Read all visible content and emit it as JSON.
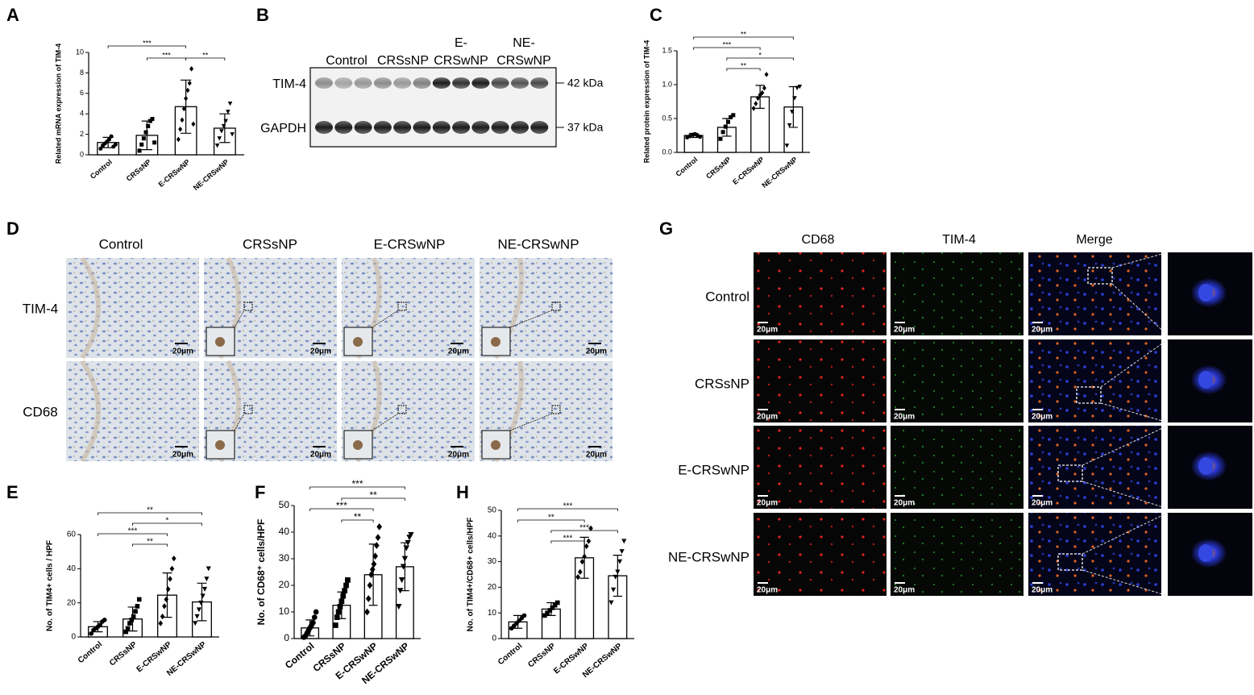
{
  "chart_data": [
    {
      "panel": "A",
      "type": "bar",
      "ylabel": "Related mRNA expression of TIM-4",
      "categories": [
        "Control",
        "CRSsNP",
        "E-CRSwNP",
        "NE-CRSwNP"
      ],
      "values": [
        1.2,
        1.9,
        4.7,
        2.6
      ],
      "errors": [
        0.5,
        1.4,
        2.6,
        1.4
      ],
      "points": [
        [
          0.6,
          0.9,
          1.1,
          1.3,
          1.5,
          1.8,
          0.8,
          1.0
        ],
        [
          0.4,
          1.0,
          1.6,
          2.2,
          2.8,
          3.3,
          3.5,
          1.2
        ],
        [
          1.5,
          2.5,
          3.4,
          4.5,
          5.5,
          6.3,
          7.0,
          8.4,
          3.0
        ],
        [
          0.9,
          1.6,
          2.3,
          2.8,
          3.3,
          4.2,
          5.0,
          2.0
        ]
      ],
      "markers": [
        "circle",
        "square",
        "diamond",
        "triangle-down"
      ],
      "ylim": [
        0,
        10
      ],
      "yticks": [
        0,
        2,
        4,
        6,
        8,
        10
      ],
      "comparisons": [
        {
          "pair": [
            "Control",
            "E-CRSwNP"
          ],
          "label": "***"
        },
        {
          "pair": [
            "CRSsNP",
            "E-CRSwNP"
          ],
          "label": "***"
        },
        {
          "pair": [
            "E-CRSwNP",
            "NE-CRSwNP"
          ],
          "label": "**"
        }
      ]
    },
    {
      "panel": "C",
      "type": "bar",
      "ylabel": "Related protein expression of TIM-4",
      "categories": [
        "Control",
        "CRSsNP",
        "E-CRSwNP",
        "NE-CRSwNP"
      ],
      "values": [
        0.25,
        0.37,
        0.82,
        0.67
      ],
      "errors": [
        0.03,
        0.13,
        0.17,
        0.3
      ],
      "points": [
        [
          0.22,
          0.24,
          0.26,
          0.27,
          0.25,
          0.23
        ],
        [
          0.2,
          0.3,
          0.38,
          0.45,
          0.52,
          0.55
        ],
        [
          0.65,
          0.72,
          0.8,
          0.85,
          0.88,
          0.95,
          1.15
        ],
        [
          0.1,
          0.4,
          0.6,
          0.8,
          0.95,
          0.97
        ]
      ],
      "markers": [
        "circle",
        "square",
        "diamond",
        "triangle-down"
      ],
      "ylim": [
        0,
        1.5
      ],
      "yticks": [
        {
          "value": 0,
          "label": "0.0"
        },
        0.5,
        {
          "value": 1,
          "label": "1.0"
        },
        1.5
      ],
      "comparisons": [
        {
          "pair": [
            "Control",
            "NE-CRSwNP"
          ],
          "label": "**"
        },
        {
          "pair": [
            "Control",
            "E-CRSwNP"
          ],
          "label": "***"
        },
        {
          "pair": [
            "CRSsNP",
            "NE-CRSwNP"
          ],
          "label": "*"
        },
        {
          "pair": [
            "CRSsNP",
            "E-CRSwNP"
          ],
          "label": "**"
        }
      ]
    },
    {
      "panel": "E",
      "type": "bar",
      "ylabel": "No. of  TIM4+ cells / HPF",
      "categories": [
        "Control",
        "CRSsNP",
        "E-CRSwNP",
        "NE-CRSwNP"
      ],
      "values": [
        6,
        10.5,
        24.5,
        20.5
      ],
      "errors": [
        3,
        7,
        13,
        11
      ],
      "points": [
        [
          2,
          4,
          5,
          6,
          7,
          9,
          10
        ],
        [
          3,
          5,
          8,
          10,
          12,
          15,
          18,
          22
        ],
        [
          8,
          12,
          18,
          22,
          28,
          34,
          40,
          46
        ],
        [
          8,
          12,
          16,
          20,
          24,
          28,
          34,
          40
        ]
      ],
      "markers": [
        "circle",
        "square",
        "diamond",
        "triangle-down"
      ],
      "ylim": [
        0,
        60
      ],
      "yticks": [
        0,
        20,
        40,
        60
      ],
      "comparisons": [
        {
          "pair": [
            "Control",
            "NE-CRSwNP"
          ],
          "label": "**"
        },
        {
          "pair": [
            "CRSsNP",
            "NE-CRSwNP"
          ],
          "label": "*"
        },
        {
          "pair": [
            "Control",
            "E-CRSwNP"
          ],
          "label": "***"
        },
        {
          "pair": [
            "CRSsNP",
            "E-CRSwNP"
          ],
          "label": "**"
        }
      ]
    },
    {
      "panel": "F",
      "type": "bar",
      "ylabel": "No. of CD68⁺ cells/HPF",
      "categories": [
        "Control",
        "CRSsNP",
        "E-CRSwNP",
        "NE-CRSwNP"
      ],
      "values": [
        4,
        12.5,
        24,
        27
      ],
      "errors": [
        3,
        5,
        11.5,
        9
      ],
      "points": [
        [
          0.5,
          1,
          2,
          3,
          4,
          5,
          6,
          8,
          10
        ],
        [
          5,
          8,
          10,
          12,
          14,
          16,
          18,
          20,
          22
        ],
        [
          10,
          15,
          20,
          24,
          26,
          28,
          31,
          35,
          38,
          42
        ],
        [
          12,
          18,
          22,
          27,
          30,
          34,
          36,
          38,
          39
        ]
      ],
      "markers": [
        "circle",
        "square",
        "diamond",
        "triangle-down"
      ],
      "ylim": [
        0,
        50
      ],
      "yticks": [
        0,
        10,
        20,
        30,
        40,
        50
      ],
      "comparisons": [
        {
          "pair": [
            "Control",
            "NE-CRSwNP"
          ],
          "label": "***"
        },
        {
          "pair": [
            "CRSsNP",
            "NE-CRSwNP"
          ],
          "label": "**"
        },
        {
          "pair": [
            "Control",
            "E-CRSwNP"
          ],
          "label": "***"
        },
        {
          "pair": [
            "CRSsNP",
            "E-CRSwNP"
          ],
          "label": "**"
        }
      ]
    },
    {
      "panel": "H",
      "type": "bar",
      "ylabel": "No. of  TIM4+/CD68+ cells/HPF",
      "categories": [
        "Control",
        "CRSsNP",
        "E-CRSwNP",
        "NE-CRSwNP"
      ],
      "values": [
        6.5,
        11.5,
        31.5,
        24.5
      ],
      "errors": [
        2.5,
        2.5,
        8,
        8
      ],
      "points": [
        [
          4,
          5,
          6,
          7,
          8,
          9
        ],
        [
          9,
          10,
          11,
          12,
          13,
          14
        ],
        [
          24,
          26,
          30,
          32,
          36,
          38,
          43
        ],
        [
          14,
          19,
          24,
          26,
          30,
          34,
          38
        ]
      ],
      "markers": [
        "circle",
        "square",
        "diamond",
        "triangle-down"
      ],
      "ylim": [
        0,
        50
      ],
      "yticks": [
        0,
        10,
        20,
        30,
        40,
        50
      ],
      "comparisons": [
        {
          "pair": [
            "Control",
            "NE-CRSwNP"
          ],
          "label": "***"
        },
        {
          "pair": [
            "Control",
            "E-CRSwNP"
          ],
          "label": "**"
        },
        {
          "pair": [
            "CRSsNP",
            "NE-CRSwNP"
          ],
          "label": "***"
        },
        {
          "pair": [
            "CRSsNP",
            "E-CRSwNP"
          ],
          "label": "***"
        }
      ]
    }
  ],
  "blot": {
    "panel": "B",
    "lanes": [
      {
        "lines": [
          "Control"
        ]
      },
      {
        "lines": [
          "CRSsNP"
        ]
      },
      {
        "lines": [
          "E-",
          "CRSwNP"
        ]
      },
      {
        "lines": [
          "NE-",
          "CRSwNP"
        ]
      }
    ],
    "rows": [
      {
        "label": "TIM-4",
        "size": "42 kDa"
      },
      {
        "label": "GAPDH",
        "size": "37 kDa"
      }
    ]
  },
  "ihc": {
    "panel": "D",
    "columns": [
      "Control",
      "CRSsNP",
      "E-CRSwNP",
      "NE-CRSwNP"
    ],
    "rows": [
      "TIM-4",
      "CD68"
    ],
    "scale_label": "20μm"
  },
  "if": {
    "panel": "G",
    "columns": [
      "CD68",
      "TIM-4",
      "Merge"
    ],
    "rows": [
      "Control",
      "CRSsNP",
      "E-CRSwNP",
      "NE-CRSwNP"
    ],
    "scale_label": "20μm"
  }
}
